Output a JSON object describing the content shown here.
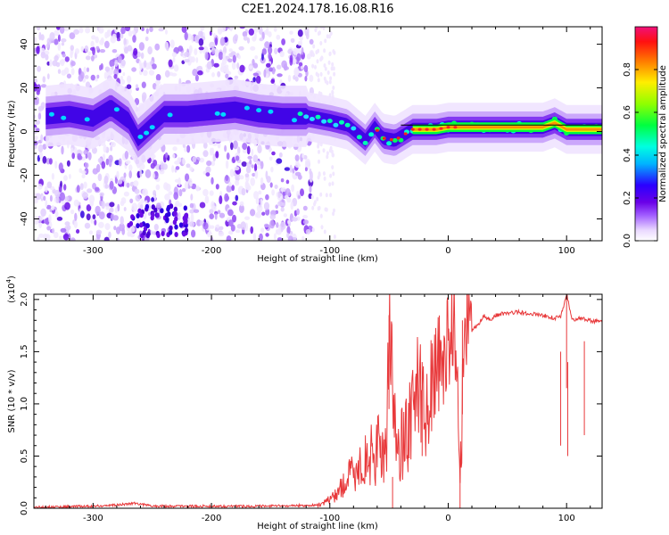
{
  "title": "C2E1.2024.178.16.08.R16",
  "chart_data": [
    {
      "type": "heatmap",
      "xlabel": "Height of straight line (km)",
      "ylabel": "Frequency (Hz)",
      "xlim": [
        -350,
        130
      ],
      "ylim": [
        -50,
        48
      ],
      "x_ticks": [
        -300,
        -200,
        -100,
        0,
        100
      ],
      "y_ticks": [
        -40,
        -20,
        0,
        20,
        40
      ],
      "colorbar": {
        "label": "Normalized spectral amplitude",
        "range": [
          0,
          1
        ],
        "ticks": [
          "0.0",
          "0.2",
          "0.4",
          "0.6",
          "0.8"
        ]
      },
      "ridge": {
        "x": [
          -340,
          -320,
          -300,
          -285,
          -270,
          -262,
          -240,
          -220,
          -200,
          -180,
          -160,
          -140,
          -120,
          -100,
          -85,
          -70,
          -62,
          -55,
          -45,
          -30,
          -10,
          0,
          20,
          50,
          80,
          90,
          100,
          130
        ],
        "y": [
          7,
          8,
          6,
          11,
          5,
          -3,
          8,
          8,
          9,
          10,
          8,
          7,
          7,
          5,
          3,
          -4,
          2,
          -3,
          -4,
          1,
          1,
          2,
          2,
          2,
          2,
          4,
          1,
          1
        ]
      }
    },
    {
      "type": "line",
      "xlabel": "Height of straight line (km)",
      "ylabel": "SNR (10 * v/v)",
      "yscale_label": "(x10",
      "yscale_exp": "4",
      "yscale_close": ")",
      "xlim": [
        -350,
        130
      ],
      "ylim": [
        0,
        2.05
      ],
      "x_ticks": [
        -300,
        -200,
        -100,
        0,
        100
      ],
      "y_ticks": [
        "0.0",
        "0.5",
        "1.0",
        "1.5",
        "2.0"
      ],
      "series": [
        {
          "color": "#e8393b",
          "x": [
            -350,
            -320,
            -300,
            -280,
            -265,
            -250,
            -200,
            -150,
            -110,
            -100,
            -90,
            -80,
            -70,
            -60,
            -52,
            -50,
            -45,
            -40,
            -35,
            -30,
            -25,
            -20,
            -15,
            -10,
            -5,
            0,
            5,
            10,
            15,
            20,
            25,
            30,
            35,
            40,
            50,
            60,
            70,
            80,
            90,
            95,
            100,
            105,
            110,
            120,
            130
          ],
          "y": [
            0.01,
            0.015,
            0.02,
            0.03,
            0.05,
            0.02,
            0.02,
            0.02,
            0.03,
            0.08,
            0.2,
            0.35,
            0.45,
            0.55,
            0.6,
            1.85,
            0.7,
            0.6,
            0.75,
            1.0,
            1.2,
            0.85,
            1.2,
            1.3,
            1.4,
            1.6,
            1.75,
            0.45,
            1.85,
            1.7,
            1.75,
            1.85,
            1.8,
            1.85,
            1.87,
            1.88,
            1.86,
            1.85,
            1.82,
            1.83,
            2.05,
            1.8,
            1.82,
            1.8,
            1.78
          ]
        }
      ]
    }
  ]
}
